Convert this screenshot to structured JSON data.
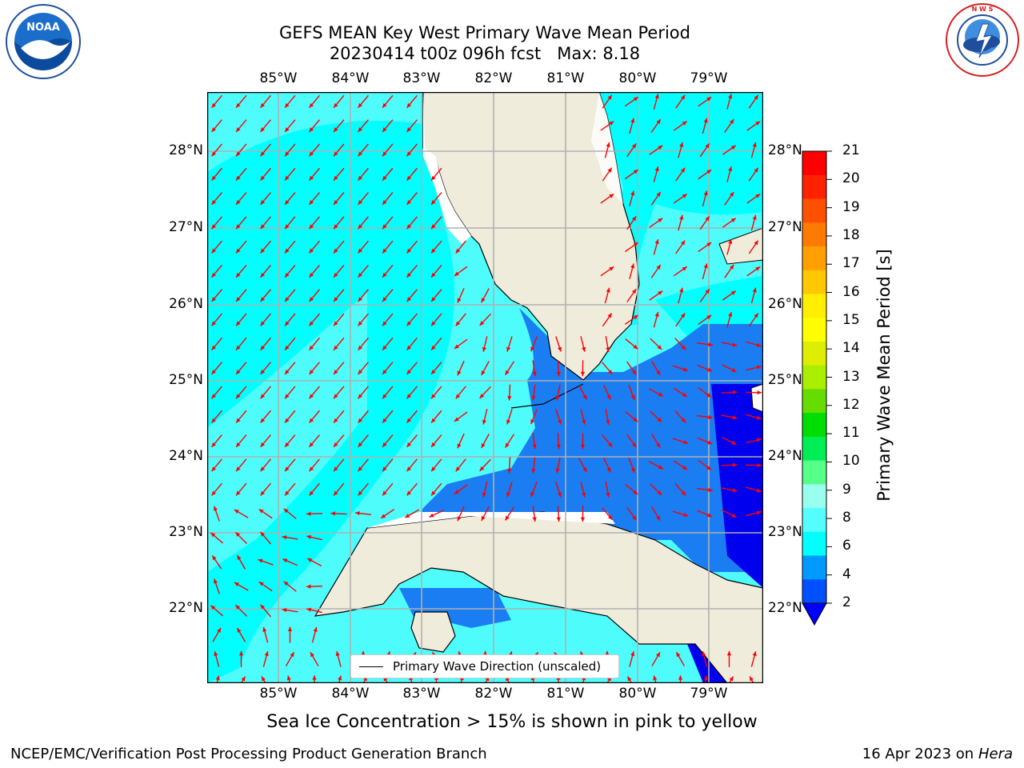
{
  "header": {
    "title_line1": "GEFS MEAN Key West Primary Wave Mean Period",
    "title_line2": "20230414 t00z 096h fcst   Max: 8.18"
  },
  "logos": {
    "noaa_text": "NOAA",
    "noaa_ring_text": "NATIONAL OCEANIC AND ATMOSPHERIC ADMINISTRATION · U.S. DEPARTMENT OF COMMERCE",
    "nws_ring_text": "NATIONAL WEATHER SERVICE"
  },
  "map": {
    "region": "Florida / Key West",
    "lon_labels": [
      "85°W",
      "84°W",
      "83°W",
      "82°W",
      "81°W",
      "80°W",
      "79°W"
    ],
    "lat_labels": [
      "28°N",
      "27°N",
      "26°N",
      "25°N",
      "24°N",
      "23°N",
      "22°N"
    ],
    "legend_label": "Primary Wave Direction (unscaled)",
    "arrow_color": "#ff0000",
    "land_color": "#efecdc",
    "grid_color": "#b0b0b0"
  },
  "colorbar": {
    "label": "Primary Wave Mean Period [s]",
    "ticks": [
      "21",
      "20",
      "19",
      "18",
      "17",
      "16",
      "15",
      "14",
      "13",
      "12",
      "11",
      "10",
      "9",
      "8",
      "6",
      "4",
      "2"
    ],
    "colors_top_to_bottom": [
      "#ff0000",
      "#ff2200",
      "#ff5000",
      "#ff7a00",
      "#ffa000",
      "#ffc800",
      "#ffee00",
      "#ffff00",
      "#ddee00",
      "#aaee00",
      "#66dd00",
      "#00dd00",
      "#00ee55",
      "#55ff88",
      "#99ffee",
      "#55ffff",
      "#00ffff",
      "#0099ff",
      "#0050ff"
    ],
    "under_color": "#0000ff"
  },
  "sea_ice_note": "Sea Ice Concentration > 15% is shown in pink to yellow",
  "footer": {
    "left": "NCEP/EMC/Verification Post Processing Product Generation Branch",
    "right_date": "16 Apr 2023 on ",
    "right_host": "Hera"
  }
}
